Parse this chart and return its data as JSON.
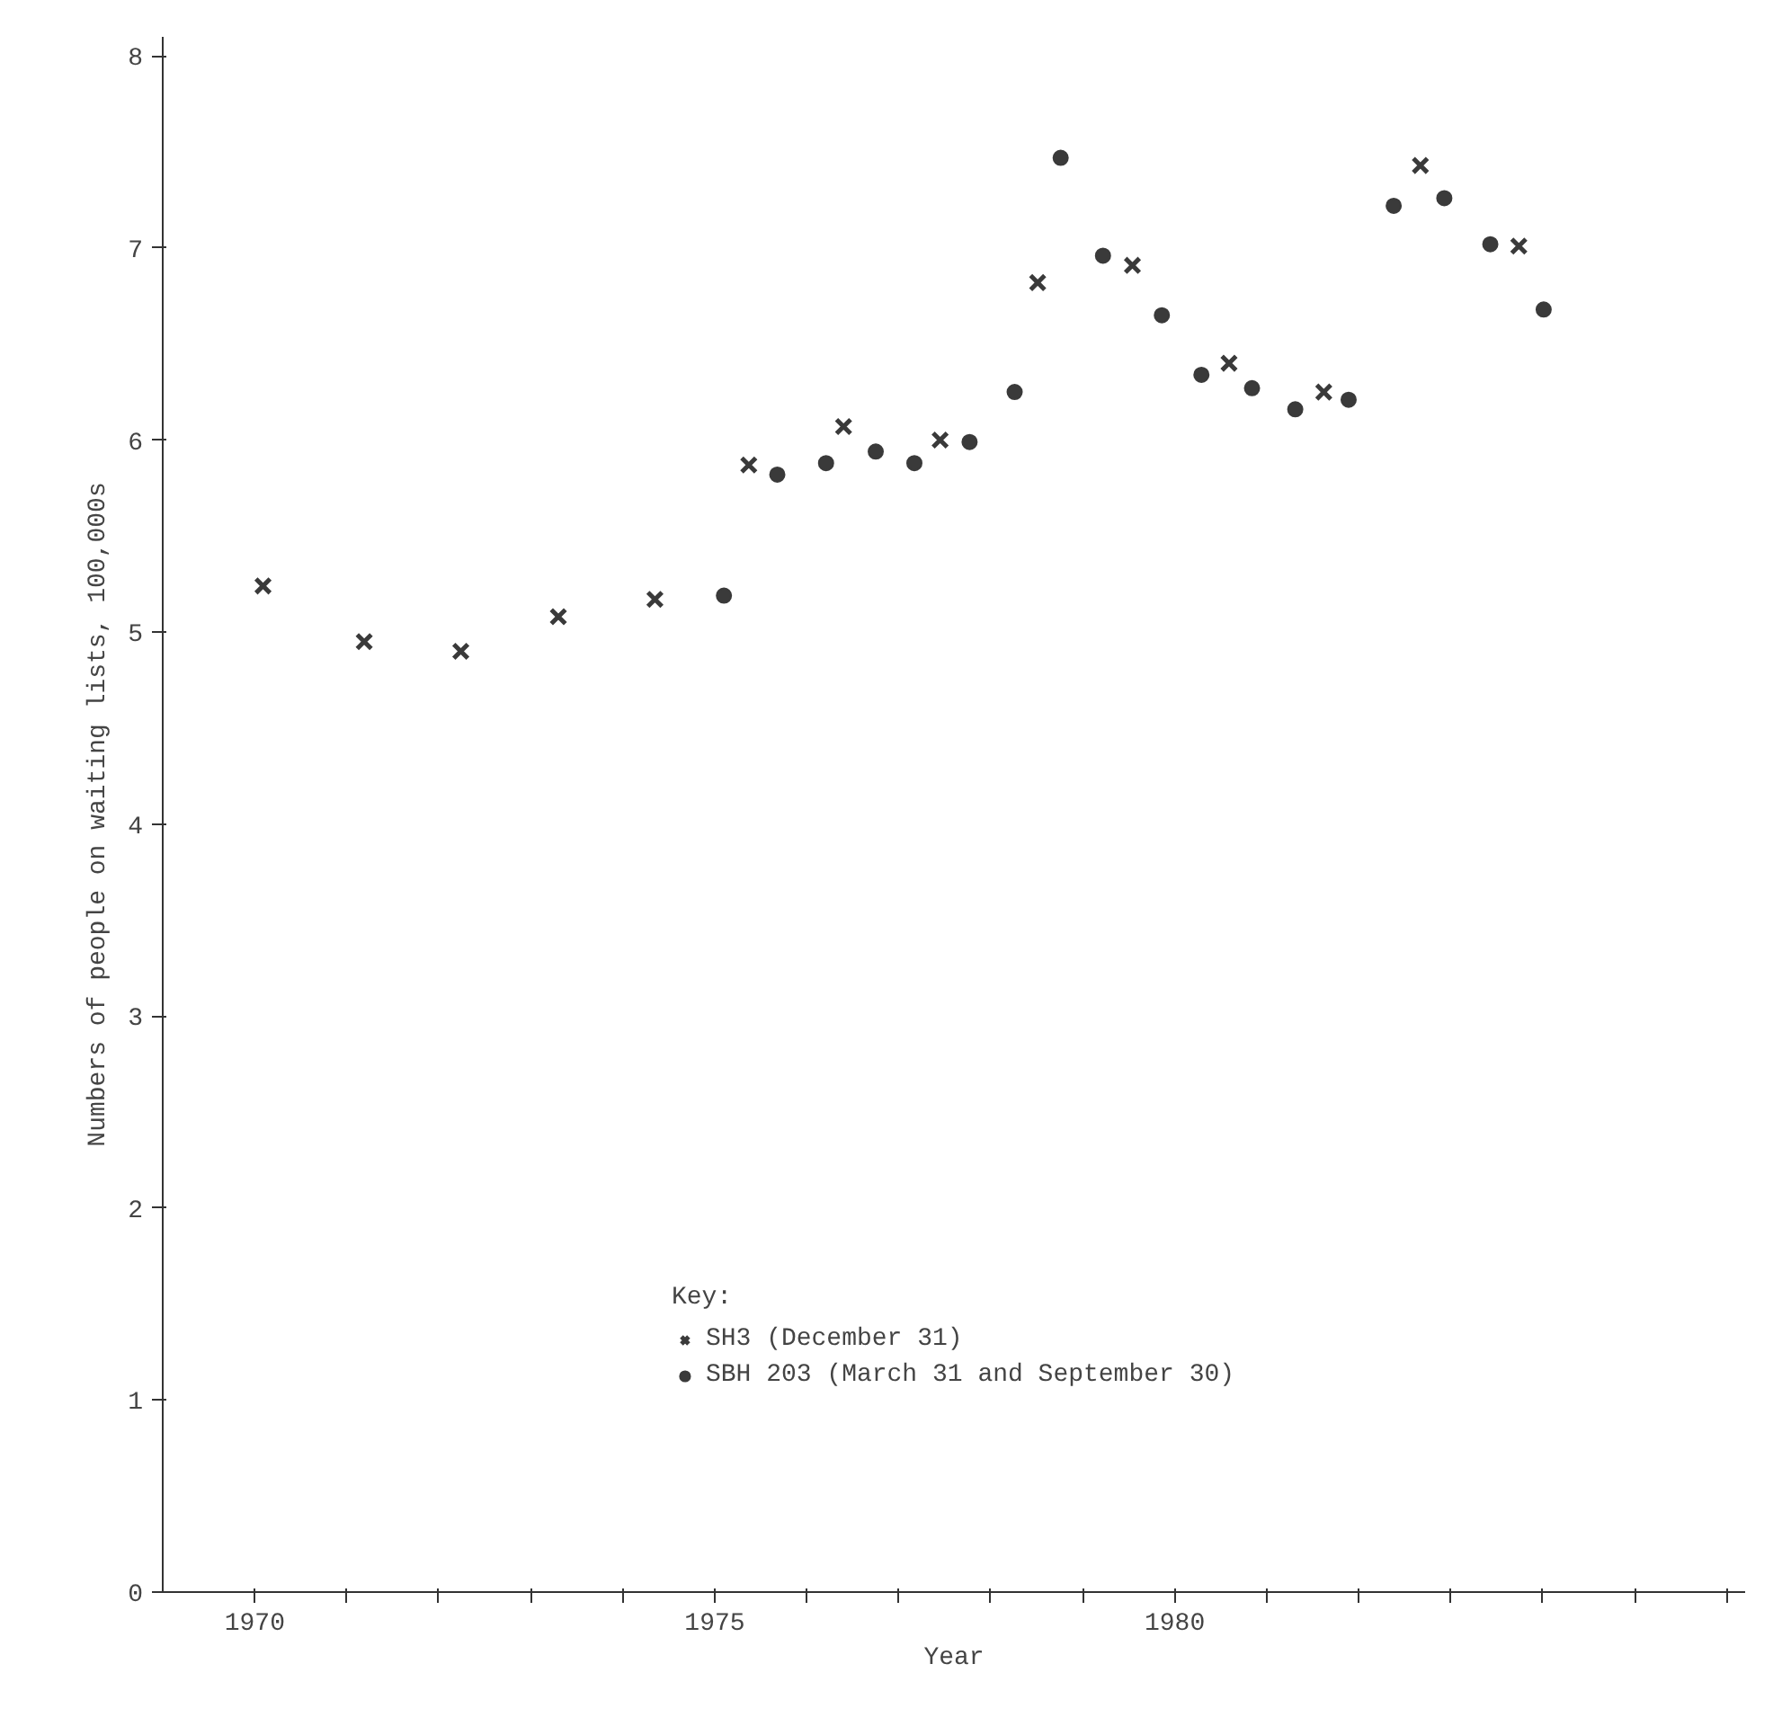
{
  "chart_data": {
    "type": "scatter",
    "xlabel": "Year",
    "ylabel": "Numbers of people on waiting lists, 100,000s",
    "legend_title": "Key:",
    "legend": "bottom",
    "grid": false,
    "xlim": [
      1969,
      1986.2
    ],
    "ylim": [
      0,
      8.1
    ],
    "xticks": [
      1970,
      {
        "value": 1971,
        "label": null
      },
      {
        "value": 1972,
        "label": null
      },
      {
        "value": 1973,
        "label": null
      },
      {
        "value": 1974,
        "label": null
      },
      1975,
      {
        "value": 1976,
        "label": null
      },
      {
        "value": 1977,
        "label": null
      },
      {
        "value": 1978,
        "label": null
      },
      {
        "value": 1979,
        "label": null
      },
      1980,
      {
        "value": 1981,
        "label": null
      },
      {
        "value": 1982,
        "label": null
      },
      {
        "value": 1983,
        "label": null
      },
      {
        "value": 1984,
        "label": null
      },
      {
        "value": 1985,
        "label": null
      },
      {
        "value": 1986,
        "label": null
      }
    ],
    "yticks": [
      0,
      1,
      2,
      3,
      4,
      5,
      6,
      7,
      8
    ],
    "series": [
      {
        "name": "SH3 (December 31)",
        "color": "#3a3a3a",
        "marker": "cross",
        "x": [
          1970.09,
          1971.19,
          1972.24,
          1973.3,
          1974.35,
          1975.37,
          1976.4,
          1977.45,
          1978.51,
          1979.54,
          1980.59,
          1981.62,
          1982.67,
          1983.74
        ],
        "values": [
          5.24,
          4.95,
          4.9,
          5.08,
          5.17,
          5.87,
          6.07,
          6.0,
          6.82,
          6.91,
          6.4,
          6.25,
          7.43,
          7.01
        ]
      },
      {
        "name": "SBH 203 (March 31 and September 30)",
        "color": "#3a3a3a",
        "marker": "circle",
        "x": [
          1975.1,
          1975.68,
          1976.21,
          1976.75,
          1977.17,
          1977.77,
          1978.26,
          1978.76,
          1979.22,
          1979.86,
          1980.29,
          1980.84,
          1981.31,
          1981.89,
          1982.38,
          1982.93,
          1983.43,
          1984.01
        ],
        "values": [
          5.19,
          5.82,
          5.88,
          5.94,
          5.88,
          5.99,
          6.25,
          7.47,
          6.96,
          6.65,
          6.34,
          6.27,
          6.16,
          6.21,
          7.22,
          7.26,
          7.02,
          6.68
        ]
      }
    ]
  }
}
